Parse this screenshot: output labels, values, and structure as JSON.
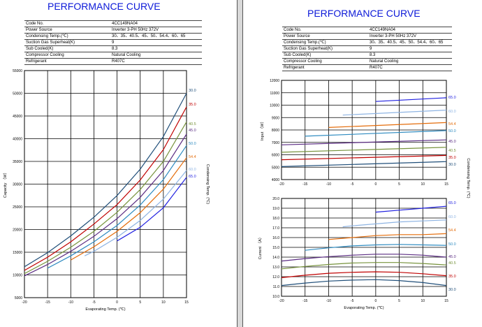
{
  "pages": [
    {
      "title": "PERFORMANCE CURVE",
      "specs": [
        {
          "label": "Code  No.",
          "value": "4CC149NA04"
        },
        {
          "label": "Power Source",
          "value": "Inverter 3-PH 50Hz 372V"
        },
        {
          "label": "Condensing Temp.(℃)",
          "value": "30、35、40.5、45、50、54.4、60、65"
        },
        {
          "label": "Suction Gas Superheat(K)",
          "value": "9"
        },
        {
          "label": "Sub Cooled(K)",
          "value": "8.3"
        },
        {
          "label": "Compressor Cooling",
          "value": "Natural Cooling"
        },
        {
          "label": "Refrigerant",
          "value": "R407C"
        }
      ]
    },
    {
      "title": "PERFORMANCE CURVE",
      "specs": [
        {
          "label": "Code  No.",
          "value": "4CC149NA04"
        },
        {
          "label": "Power Source",
          "value": "Inverter 3-PH 50Hz 372V"
        },
        {
          "label": "Condensing Temp.(℃)",
          "value": "30、35、40.5、45、50、54.4、60、65"
        },
        {
          "label": "Suction Gas Superheat(K)",
          "value": "9"
        },
        {
          "label": "Sub Cooled(K)",
          "value": "8.3"
        },
        {
          "label": "Compressor Cooling",
          "value": "Natural Cooling"
        },
        {
          "label": "Refrigerant",
          "value": "R407C"
        }
      ]
    }
  ],
  "chart_data": [
    {
      "type": "line",
      "xlabel": "Evaporating Temp. (℃)",
      "ylabel": "Capacity （W）",
      "y2label": "Condensing Temp. (℃)",
      "xlim": [
        -20,
        15
      ],
      "ylim": [
        5000,
        55000
      ],
      "xticks": [
        -20,
        -15,
        -10,
        -5,
        0,
        5,
        10,
        15
      ],
      "yticks": [
        5000,
        10000,
        15000,
        20000,
        25000,
        30000,
        35000,
        40000,
        45000,
        50000,
        55000
      ],
      "grid": true,
      "series": [
        {
          "name": "30.0",
          "color": "#1f4e79",
          "x": [
            -20,
            -15,
            -10,
            -5,
            0,
            5,
            10,
            15
          ],
          "y": [
            11800,
            14900,
            18600,
            22700,
            27500,
            33300,
            40500,
            50000
          ]
        },
        {
          "name": "35.0",
          "color": "#c00000",
          "x": [
            -20,
            -15,
            -10,
            -5,
            0,
            5,
            10,
            15
          ],
          "y": [
            11000,
            13900,
            17300,
            21200,
            25500,
            30900,
            37600,
            47000
          ]
        },
        {
          "name": "40.5",
          "color": "#77933c",
          "x": [
            -20,
            -15,
            -10,
            -5,
            0,
            5,
            10,
            15
          ],
          "y": [
            10300,
            13000,
            16100,
            19600,
            23800,
            28800,
            35000,
            43700
          ]
        },
        {
          "name": "45.0",
          "color": "#5b2c83",
          "x": [
            -20,
            -15,
            -10,
            -5,
            0,
            5,
            10,
            15
          ],
          "y": [
            9800,
            12300,
            15200,
            18500,
            22400,
            27100,
            33000,
            41000
          ]
        },
        {
          "name": "50.0",
          "color": "#2e8bc0",
          "x": [
            -15,
            -10,
            -5,
            0,
            5,
            10,
            15
          ],
          "y": [
            11500,
            14200,
            17300,
            20900,
            25400,
            31000,
            38500
          ]
        },
        {
          "name": "54.4",
          "color": "#e46c0a",
          "x": [
            -10,
            -5,
            0,
            5,
            10,
            15
          ],
          "y": [
            13300,
            16200,
            19600,
            23700,
            28900,
            35800
          ]
        },
        {
          "name": "60.0",
          "color": "#8eb4e3",
          "x": [
            -7,
            -5,
            0,
            5,
            10,
            15
          ],
          "y": [
            14200,
            15200,
            18300,
            22000,
            26700,
            33000
          ]
        },
        {
          "name": "65.0",
          "color": "#1f1fe0",
          "x": [
            0,
            5,
            10,
            15
          ],
          "y": [
            17500,
            20500,
            24800,
            31500
          ]
        }
      ]
    },
    {
      "type": "line",
      "xlabel": "",
      "ylabel": "Input （W）",
      "y2label": "Condensing Temp. (℃)",
      "xlim": [
        -20,
        15
      ],
      "ylim": [
        4000,
        12000
      ],
      "xticks": [
        -20,
        -15,
        -10,
        -5,
        0,
        5,
        10,
        15
      ],
      "yticks": [
        4000,
        5000,
        6000,
        7000,
        8000,
        9000,
        10000,
        11000,
        12000
      ],
      "grid": true,
      "series": [
        {
          "name": "65.0",
          "color": "#1f1fe0",
          "x": [
            0,
            15
          ],
          "y": [
            10300,
            10600
          ]
        },
        {
          "name": "60.0",
          "color": "#8eb4e3",
          "x": [
            -7,
            15
          ],
          "y": [
            9200,
            9600
          ]
        },
        {
          "name": "54.4",
          "color": "#e46c0a",
          "x": [
            -10,
            15
          ],
          "y": [
            8200,
            8600
          ]
        },
        {
          "name": "50.0",
          "color": "#2e8bc0",
          "x": [
            -15,
            15
          ],
          "y": [
            7500,
            7950
          ]
        },
        {
          "name": "45.0",
          "color": "#5b2c83",
          "x": [
            -20,
            15
          ],
          "y": [
            6800,
            7200
          ]
        },
        {
          "name": "40.5",
          "color": "#77933c",
          "x": [
            -20,
            15
          ],
          "y": [
            6200,
            6600
          ]
        },
        {
          "name": "35.0",
          "color": "#c00000",
          "x": [
            -20,
            15
          ],
          "y": [
            5600,
            5950
          ]
        },
        {
          "name": "30.0",
          "color": "#1f4e79",
          "x": [
            -20,
            15
          ],
          "y": [
            5050,
            5450
          ]
        }
      ]
    },
    {
      "type": "line",
      "xlabel": "Evaporating Temp. (℃)",
      "ylabel": "Current （A）",
      "y2label": "Condensing Temp. (℃)",
      "xlim": [
        -20,
        15
      ],
      "ylim": [
        10.0,
        20.0
      ],
      "xticks": [
        -20,
        -15,
        -10,
        -5,
        0,
        5,
        10,
        15
      ],
      "yticks": [
        10.0,
        11.0,
        12.0,
        13.0,
        14.0,
        15.0,
        16.0,
        17.0,
        18.0,
        19.0,
        20.0
      ],
      "grid": true,
      "series": [
        {
          "name": "65.0",
          "color": "#1f1fe0",
          "x": [
            0,
            5,
            10,
            15
          ],
          "y": [
            18.6,
            18.8,
            19.0,
            19.2
          ]
        },
        {
          "name": "60.0",
          "color": "#8eb4e3",
          "x": [
            -7,
            -5,
            0,
            5,
            10,
            15
          ],
          "y": [
            17.1,
            17.2,
            17.4,
            17.6,
            17.7,
            17.8
          ]
        },
        {
          "name": "54.4",
          "color": "#e46c0a",
          "x": [
            -10,
            -5,
            0,
            5,
            10,
            15
          ],
          "y": [
            15.8,
            16.0,
            16.2,
            16.3,
            16.3,
            16.4
          ]
        },
        {
          "name": "50.0",
          "color": "#2e8bc0",
          "x": [
            -15,
            -10,
            -5,
            0,
            5,
            10,
            15
          ],
          "y": [
            14.7,
            14.95,
            15.15,
            15.25,
            15.3,
            15.25,
            15.2
          ]
        },
        {
          "name": "45.0",
          "color": "#5b2c83",
          "x": [
            -20,
            -15,
            -10,
            -5,
            0,
            5,
            10,
            15
          ],
          "y": [
            13.6,
            13.85,
            14.05,
            14.2,
            14.3,
            14.3,
            14.2,
            14.0
          ]
        },
        {
          "name": "40.5",
          "color": "#77933c",
          "x": [
            -20,
            -15,
            -10,
            -5,
            0,
            5,
            10,
            15
          ],
          "y": [
            12.8,
            13.05,
            13.25,
            13.4,
            13.45,
            13.45,
            13.35,
            13.2
          ]
        },
        {
          "name": "35.0",
          "color": "#c00000",
          "x": [
            -20,
            -15,
            -10,
            -5,
            0,
            5,
            10,
            15
          ],
          "y": [
            11.9,
            12.15,
            12.35,
            12.45,
            12.5,
            12.45,
            12.3,
            12.1
          ]
        },
        {
          "name": "30.0",
          "color": "#1f4e79",
          "x": [
            -20,
            -15,
            -10,
            -5,
            0,
            5,
            10,
            15
          ],
          "y": [
            11.1,
            11.35,
            11.55,
            11.65,
            11.7,
            11.6,
            11.4,
            11.1
          ]
        }
      ]
    }
  ]
}
